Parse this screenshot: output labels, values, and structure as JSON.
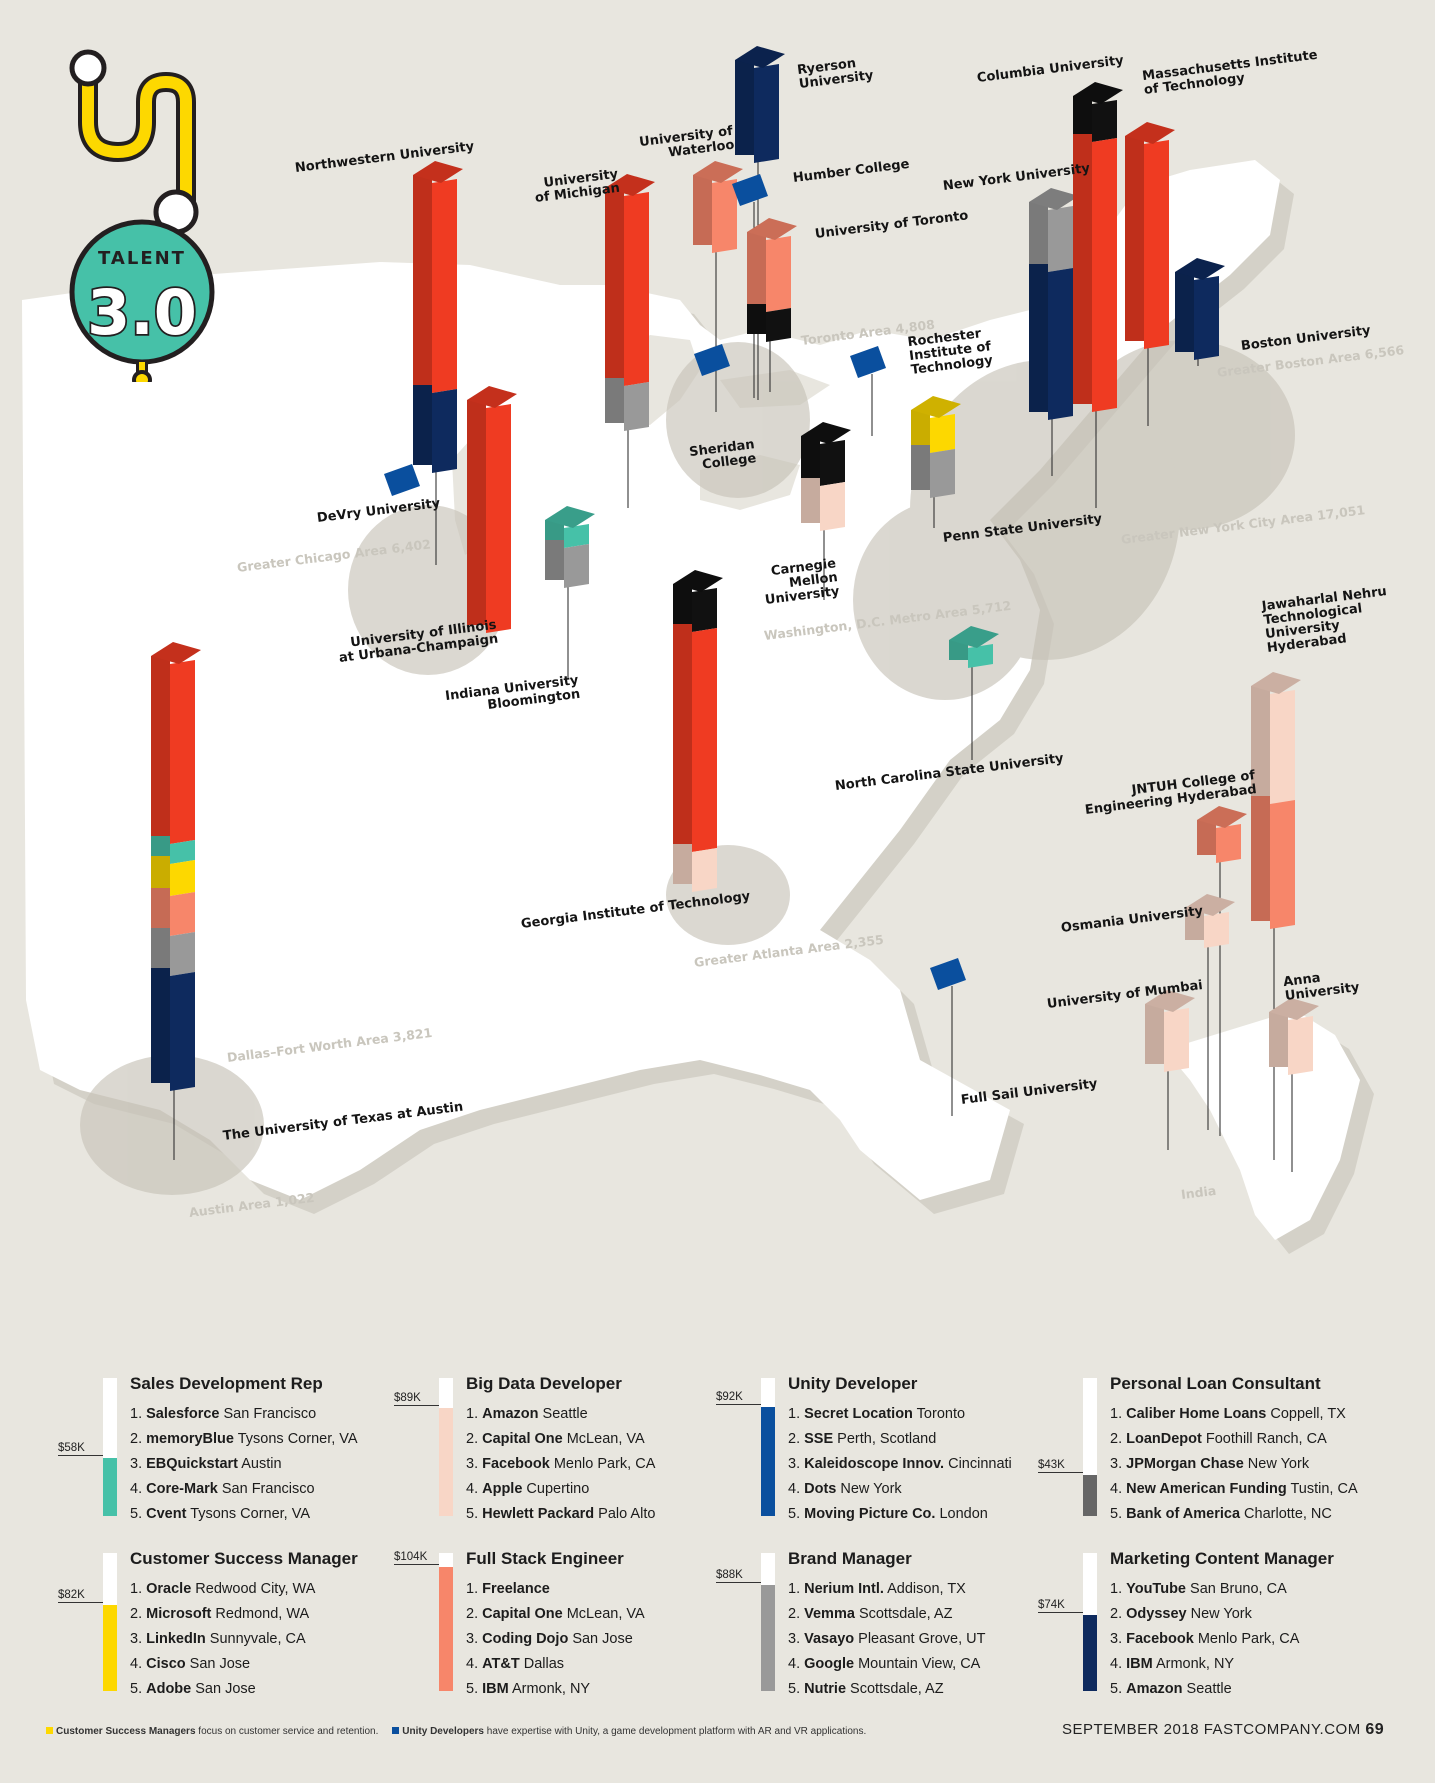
{
  "logo": {
    "line1": "TALENT",
    "line2": "3.0"
  },
  "colors": {
    "background": "#e8e6df",
    "land": "#ffffff",
    "land_shadow": "#d4d1c8",
    "area_circle": "#c7c3b8",
    "red": "#ef3b22",
    "salmon": "#f7866a",
    "peach": "#f8d6c6",
    "navy": "#0e2a5e",
    "blue": "#0a4f9e",
    "gray": "#999999",
    "dark_gray": "#666666",
    "black": "#111111",
    "yellow": "#fdd800",
    "teal": "#46c1a8"
  },
  "areas": {
    "chicago": "Greater Chicago Area 6,402",
    "toronto": "Toronto Area 4,808",
    "boston": "Greater Boston Area 6,566",
    "nyc": "Greater New York City Area 17,051",
    "dc": "Washington, D.C. Metro Area 5,712",
    "atlanta": "Greater Atlanta Area 2,355",
    "dallas": "Dallas–Fort Worth  Area 3,821",
    "austin": "Austin Area 1,022",
    "india": "India"
  },
  "universities": {
    "northwestern": "Northwestern University",
    "devry": "DeVry University",
    "uiuc": [
      "University of Illinois",
      "at Urbana-Champaign"
    ],
    "indiana": [
      "Indiana University",
      "Bloomington"
    ],
    "michigan": [
      "University",
      "of Michigan"
    ],
    "waterloo": [
      "University of",
      "Waterloo"
    ],
    "ryerson": [
      "Ryerson",
      "University"
    ],
    "humber": "Humber College",
    "toronto": "University of Toronto",
    "sheridan": [
      "Sheridan",
      "College"
    ],
    "cmu": [
      "Carnegie",
      "Mellon",
      "University"
    ],
    "rit": [
      "Rochester",
      "Institute of",
      "Technology"
    ],
    "pennstate": "Penn State University",
    "columbia": "Columbia University",
    "mit": [
      "Massachusetts Institute",
      "of Technology"
    ],
    "nyu": "New York University",
    "bu": "Boston University",
    "ncstate": "North Carolina State University",
    "gatech": "Georgia Institute of Technology",
    "fullsail": "Full Sail University",
    "utaustin": "The University of Texas at Austin",
    "jntu": [
      "Jawaharlal Nehru",
      "Technological",
      "University",
      "Hyderabad"
    ],
    "jntuh": [
      "JNTUH College of",
      "Engineering Hyderabad"
    ],
    "osmania": "Osmania University",
    "mumbai": "University of Mumbai",
    "anna": [
      "Anna",
      "University"
    ]
  },
  "jobs": [
    {
      "title": "Sales Development Rep",
      "salary": "$58K",
      "salary_fraction": 0.42,
      "color": "#46c1a8",
      "companies": [
        [
          "Salesforce",
          "San Francisco"
        ],
        [
          "memoryBlue",
          "Tysons Corner, VA"
        ],
        [
          "EBQuickstart",
          "Austin"
        ],
        [
          "Core-Mark",
          "San Francisco"
        ],
        [
          "Cvent",
          "Tysons Corner, VA"
        ]
      ]
    },
    {
      "title": "Big Data Developer",
      "salary": "$89K",
      "salary_fraction": 0.78,
      "color": "#f8d6c6",
      "companies": [
        [
          "Amazon",
          "Seattle"
        ],
        [
          "Capital One",
          "McLean, VA"
        ],
        [
          "Facebook",
          "Menlo Park, CA"
        ],
        [
          "Apple",
          "Cupertino"
        ],
        [
          "Hewlett Packard",
          "Palo Alto"
        ]
      ]
    },
    {
      "title": "Unity Developer",
      "salary": "$92K",
      "salary_fraction": 0.79,
      "color": "#0a4f9e",
      "companies": [
        [
          "Secret Location",
          "Toronto"
        ],
        [
          "SSE",
          "Perth, Scotland"
        ],
        [
          "Kaleidoscope Innov.",
          "Cincinnati"
        ],
        [
          "Dots",
          "New York"
        ],
        [
          "Moving Picture Co.",
          "London"
        ]
      ]
    },
    {
      "title": "Personal Loan Consultant",
      "salary": "$43K",
      "salary_fraction": 0.3,
      "color": "#666666",
      "companies": [
        [
          "Caliber Home Loans",
          "Coppell, TX"
        ],
        [
          "LoanDepot",
          "Foothill Ranch, CA"
        ],
        [
          "JPMorgan Chase",
          "New York"
        ],
        [
          "New American Funding",
          "Tustin, CA"
        ],
        [
          "Bank of America",
          "Charlotte, NC"
        ]
      ]
    },
    {
      "title": "Customer Success Manager",
      "salary": "$82K",
      "salary_fraction": 0.62,
      "color": "#fdd800",
      "companies": [
        [
          "Oracle",
          "Redwood City, WA"
        ],
        [
          "Microsoft",
          "Redmond, WA"
        ],
        [
          "LinkedIn",
          "Sunnyvale, CA"
        ],
        [
          "Cisco",
          "San Jose"
        ],
        [
          "Adobe",
          "San Jose"
        ]
      ]
    },
    {
      "title": "Full Stack Engineer",
      "salary": "$104K",
      "salary_fraction": 0.9,
      "color": "#f7866a",
      "companies": [
        [
          "Freelance",
          ""
        ],
        [
          "Capital One",
          "McLean, VA"
        ],
        [
          "Coding Dojo",
          "San Jose"
        ],
        [
          "AT&T",
          "Dallas"
        ],
        [
          "IBM",
          "Armonk, NY"
        ]
      ]
    },
    {
      "title": "Brand Manager",
      "salary": "$88K",
      "salary_fraction": 0.77,
      "color": "#999999",
      "companies": [
        [
          "Nerium Intl.",
          "Addison, TX"
        ],
        [
          "Vemma",
          "Scottsdale, AZ"
        ],
        [
          "Vasayo",
          "Pleasant Grove, UT"
        ],
        [
          "Google",
          "Mountain View, CA"
        ],
        [
          "Nutrie",
          "Scottsdale, AZ"
        ]
      ]
    },
    {
      "title": "Marketing Content Manager",
      "salary": "$74K",
      "salary_fraction": 0.55,
      "color": "#0e2a5e",
      "companies": [
        [
          "YouTube",
          "San Bruno, CA"
        ],
        [
          "Odyssey",
          "New York"
        ],
        [
          "Facebook",
          "Menlo Park, CA"
        ],
        [
          "IBM",
          "Armonk, NY"
        ],
        [
          "Amazon",
          "Seattle"
        ]
      ]
    }
  ],
  "footnote": {
    "csm_bold": "Customer Success Managers",
    "csm_text": " focus on customer service and retention.",
    "unity_bold": "Unity Developers",
    "unity_text": " have expertise with Unity, a game development platform with AR and VR applications."
  },
  "folio": {
    "text": "SEPTEMBER 2018  FASTCOMPANY.COM",
    "page": "69"
  }
}
